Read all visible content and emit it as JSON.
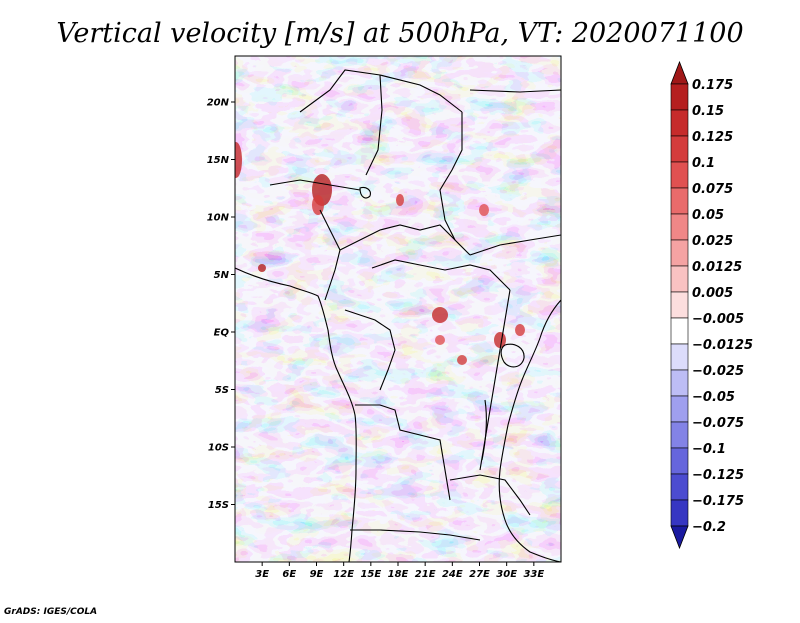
{
  "title": "Vertical velocity [m/s] at 500hPa, VT: 2020071100",
  "credit": "GrADS: IGES/COLA",
  "map": {
    "lon_range": [
      0,
      36
    ],
    "lat_range": [
      -20,
      24
    ],
    "lat_ticks": [
      {
        "value": 20,
        "label": "20N"
      },
      {
        "value": 15,
        "label": "15N"
      },
      {
        "value": 10,
        "label": "10N"
      },
      {
        "value": 5,
        "label": "5N"
      },
      {
        "value": 0,
        "label": "EQ"
      },
      {
        "value": -5,
        "label": "5S"
      },
      {
        "value": -10,
        "label": "10S"
      },
      {
        "value": -15,
        "label": "15S"
      }
    ],
    "lon_ticks": [
      {
        "value": 3,
        "label": "3E"
      },
      {
        "value": 6,
        "label": "6E"
      },
      {
        "value": 9,
        "label": "9E"
      },
      {
        "value": 12,
        "label": "12E"
      },
      {
        "value": 15,
        "label": "15E"
      },
      {
        "value": 18,
        "label": "18E"
      },
      {
        "value": 21,
        "label": "21E"
      },
      {
        "value": 24,
        "label": "24E"
      },
      {
        "value": 27,
        "label": "27E"
      },
      {
        "value": 30,
        "label": "30E"
      },
      {
        "value": 33,
        "label": "33E"
      }
    ]
  },
  "colorbar": {
    "levels": [
      {
        "label": "0.175",
        "color": "#b51f1f"
      },
      {
        "label": "0.15",
        "color": "#c62b2b"
      },
      {
        "label": "0.125",
        "color": "#d43c3c"
      },
      {
        "label": "0.1",
        "color": "#e05151"
      },
      {
        "label": "0.075",
        "color": "#e96b6b"
      },
      {
        "label": "0.05",
        "color": "#f08787"
      },
      {
        "label": "0.025",
        "color": "#f5a3a3"
      },
      {
        "label": "0.0125",
        "color": "#f9c2c2"
      },
      {
        "label": "0.005",
        "color": "#fcdede"
      },
      {
        "label": "−0.005",
        "color": "#ffffff"
      },
      {
        "label": "−0.0125",
        "color": "#dcdcfb"
      },
      {
        "label": "−0.025",
        "color": "#bdbdf5"
      },
      {
        "label": "−0.05",
        "color": "#9f9fef"
      },
      {
        "label": "−0.075",
        "color": "#8383e6"
      },
      {
        "label": "−0.1",
        "color": "#6666dc"
      },
      {
        "label": "−0.125",
        "color": "#4c4cd0"
      },
      {
        "label": "−0.175",
        "color": "#3636c2"
      },
      {
        "label": "−0.2",
        "color": "#2222b0"
      }
    ],
    "top_color": "#a01818",
    "bottom_color": "#1a1aa0"
  }
}
